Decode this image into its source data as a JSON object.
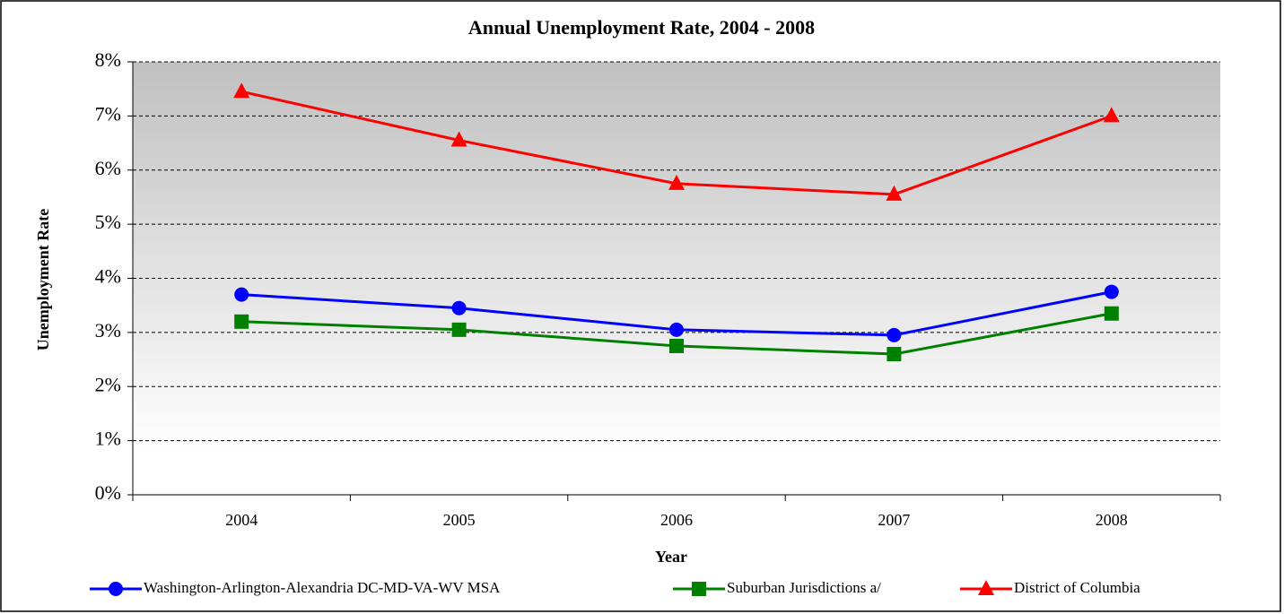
{
  "chart_data": {
    "type": "line",
    "title": "Annual Unemployment Rate, 2004 - 2008",
    "x_label": "Year",
    "y_label": "Unemployment Rate",
    "categories": [
      "2004",
      "2005",
      "2006",
      "2007",
      "2008"
    ],
    "series": [
      {
        "name": "Washington-Arlington-Alexandria DC-MD-VA-WV MSA",
        "color": "#0000ff",
        "marker": "circle",
        "values": [
          3.7,
          3.45,
          3.05,
          2.95,
          3.75
        ]
      },
      {
        "name": "Suburban Jurisdictions a/",
        "color": "#008000",
        "marker": "square",
        "values": [
          3.2,
          3.05,
          2.75,
          2.6,
          3.35
        ]
      },
      {
        "name": "District of Columbia",
        "color": "#ff0000",
        "marker": "triangle",
        "values": [
          7.45,
          6.55,
          5.75,
          5.55,
          7.0
        ]
      }
    ],
    "ylim": [
      0,
      8
    ],
    "yticks": [
      {
        "value": 0,
        "label": "0%"
      },
      {
        "value": 1,
        "label": "1%"
      },
      {
        "value": 2,
        "label": "2%"
      },
      {
        "value": 3,
        "label": "3%"
      },
      {
        "value": 4,
        "label": "4%"
      },
      {
        "value": 5,
        "label": "5%"
      },
      {
        "value": 6,
        "label": "6%"
      },
      {
        "value": 7,
        "label": "7%"
      },
      {
        "value": 8,
        "label": "8%"
      }
    ],
    "grid": true,
    "legend": "bottom"
  }
}
